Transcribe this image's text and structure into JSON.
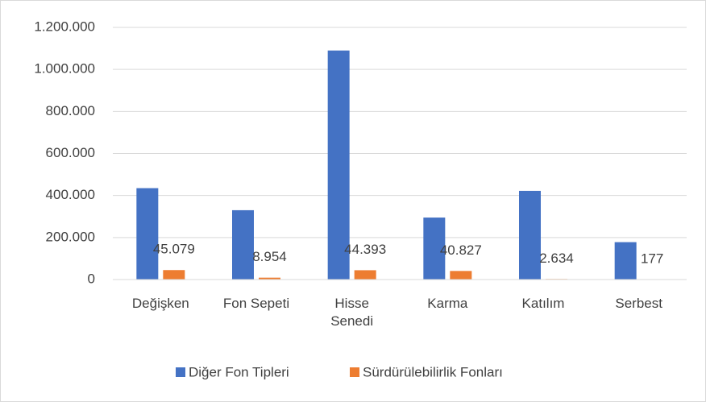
{
  "chart_data": {
    "type": "bar",
    "categories": [
      "Değişken",
      "Fon Sepeti",
      "Hisse Senedi",
      "Karma",
      "Katılım",
      "Serbest"
    ],
    "series": [
      {
        "name": "Diğer Fon Tipleri",
        "color": "#4472c4",
        "values": [
          435000,
          330000,
          1090000,
          295000,
          422000,
          178000
        ]
      },
      {
        "name": "Sürdürülebilirlik Fonları",
        "color": "#ed7d31",
        "values": [
          45079,
          8954,
          44393,
          40827,
          2634,
          177
        ],
        "value_labels": [
          "45.079",
          "8.954",
          "44.393",
          "40.827",
          "2.634",
          "177"
        ]
      }
    ],
    "ylim": [
      0,
      1200000
    ],
    "yticks": [
      0,
      {
        "value": 200000,
        "label": "200.000"
      },
      {
        "value": 400000,
        "label": "400.000"
      },
      {
        "value": 600000,
        "label": "600.000"
      },
      {
        "value": 800000,
        "label": "800.000"
      },
      {
        "value": 1000000,
        "label": "1.000.000"
      },
      {
        "value": 1200000,
        "label": "1.200.000"
      }
    ],
    "grid": true,
    "legend": "bottom"
  }
}
